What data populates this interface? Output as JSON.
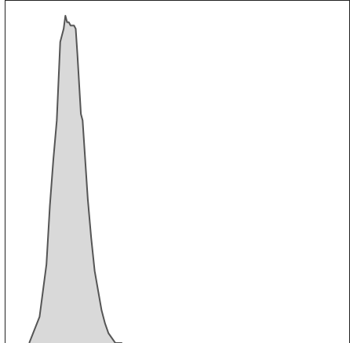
{
  "chart_data": {
    "type": "area",
    "title": "",
    "xlabel": "",
    "ylabel": "",
    "grid": false,
    "legend": "none",
    "xlim": [
      0,
      1
    ],
    "ylim": [
      0,
      1
    ],
    "series": [
      {
        "values_x": [
          0.07,
          0.1,
          0.12,
          0.13,
          0.14,
          0.15,
          0.155,
          0.16,
          0.17,
          0.175,
          0.18,
          0.185,
          0.19,
          0.2,
          0.205,
          0.21,
          0.22,
          0.225,
          0.23,
          0.24,
          0.25,
          0.26,
          0.27,
          0.28,
          0.29,
          0.3,
          0.32,
          0.34
        ],
        "values_y": [
          0.0,
          0.08,
          0.24,
          0.42,
          0.56,
          0.68,
          0.8,
          0.92,
          0.96,
          1.0,
          0.98,
          0.98,
          0.97,
          0.97,
          0.96,
          0.88,
          0.7,
          0.68,
          0.6,
          0.44,
          0.32,
          0.22,
          0.16,
          0.1,
          0.06,
          0.03,
          0.0,
          0.0
        ]
      }
    ],
    "colors": {
      "fill": "#d9d9d9",
      "stroke": "#555555",
      "frame": "#222222"
    }
  }
}
